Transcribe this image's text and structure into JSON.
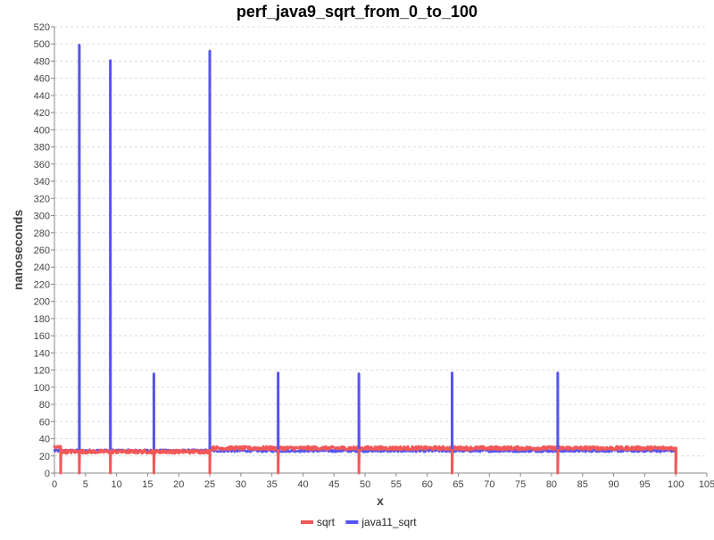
{
  "chart_data": {
    "type": "line",
    "title": "perf_java9_sqrt_from_0_to_100",
    "xlabel": "x",
    "ylabel": "nanoseconds",
    "xlim": [
      0,
      105
    ],
    "ylim": [
      0,
      520
    ],
    "x_ticks": [
      0,
      5,
      10,
      15,
      20,
      25,
      30,
      35,
      40,
      45,
      50,
      55,
      60,
      65,
      70,
      75,
      80,
      85,
      90,
      95,
      100,
      105
    ],
    "y_ticks": [
      0,
      20,
      40,
      60,
      80,
      100,
      120,
      140,
      160,
      180,
      200,
      220,
      240,
      260,
      280,
      300,
      320,
      340,
      360,
      380,
      400,
      420,
      440,
      460,
      480,
      500,
      520
    ],
    "grid": true,
    "legend_position": "bottom-center",
    "series": [
      {
        "name": "sqrt",
        "color": "#f25858",
        "baseline": [
          {
            "x_from": 0,
            "x_to": 1,
            "y": 30
          },
          {
            "x_from": 1,
            "x_to": 25,
            "y": 25
          },
          {
            "x_from": 25,
            "x_to": 100,
            "y": 29
          }
        ],
        "points": [
          [
            0,
            30
          ],
          [
            1,
            0
          ],
          [
            4,
            0
          ],
          [
            9,
            0
          ],
          [
            16,
            0
          ],
          [
            25,
            0
          ],
          [
            36,
            0
          ],
          [
            49,
            0
          ],
          [
            64,
            0
          ],
          [
            81,
            0
          ],
          [
            100,
            0
          ]
        ]
      },
      {
        "name": "java11_sqrt",
        "color": "#5555ee",
        "baseline": [
          {
            "x_from": 0,
            "x_to": 25,
            "y": 26
          },
          {
            "x_from": 25,
            "x_to": 100,
            "y": 26
          }
        ],
        "points": [
          [
            0,
            27
          ],
          [
            4,
            499
          ],
          [
            9,
            481
          ],
          [
            16,
            116
          ],
          [
            25,
            492
          ],
          [
            36,
            117
          ],
          [
            49,
            116
          ],
          [
            64,
            117
          ],
          [
            81,
            117
          ],
          [
            100,
            2
          ]
        ]
      }
    ]
  }
}
